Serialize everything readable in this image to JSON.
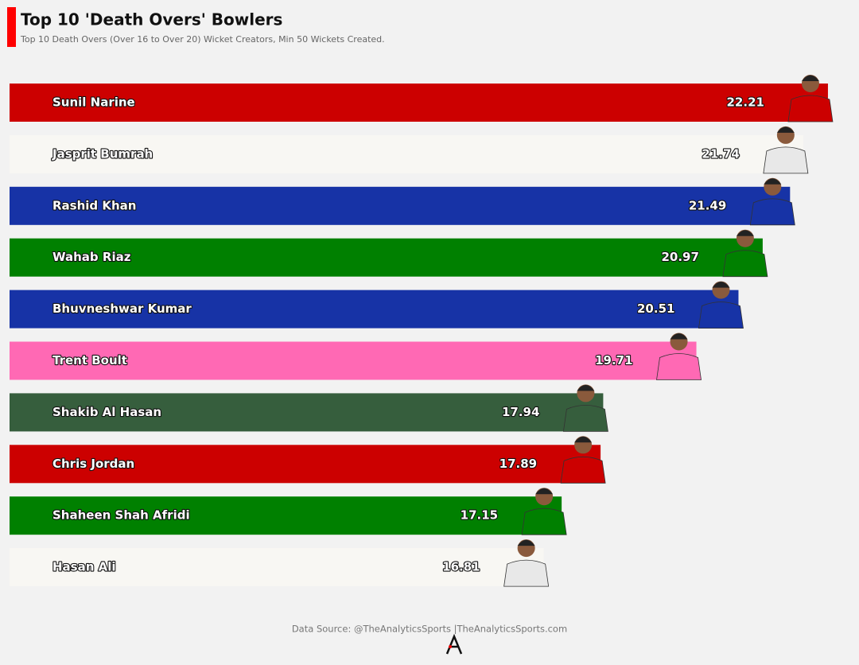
{
  "chart_data": {
    "type": "bar",
    "orientation": "horizontal",
    "title": "Top 10 'Death Overs' Bowlers",
    "subtitle": "Top 10 Death Overs (Over 16 to Over 20) Wicket Creators, Min 50 Wickets Created.",
    "categories": [
      "Sunil Narine",
      "Jasprit Bumrah",
      "Rashid Khan",
      "Wahab Riaz",
      "Bhuvneshwar Kumar",
      "Trent Boult",
      "Shakib Al Hasan",
      "Chris Jordan",
      "Shaheen Shah Afridi",
      "Hasan Ali"
    ],
    "values": [
      22.21,
      21.74,
      21.49,
      20.97,
      20.51,
      19.71,
      17.94,
      17.89,
      17.15,
      16.81
    ],
    "colors": [
      "#cc0000",
      "#f8f7f3",
      "#1733a6",
      "#008000",
      "#1733a6",
      "#ff69b4",
      "#365e3d",
      "#cc0000",
      "#008000",
      "#f8f7f3"
    ],
    "xlim": [
      6.66,
      22.8
    ],
    "source": "Data Source: @TheAnalyticsSports |TheAnalyticsSports.com"
  }
}
